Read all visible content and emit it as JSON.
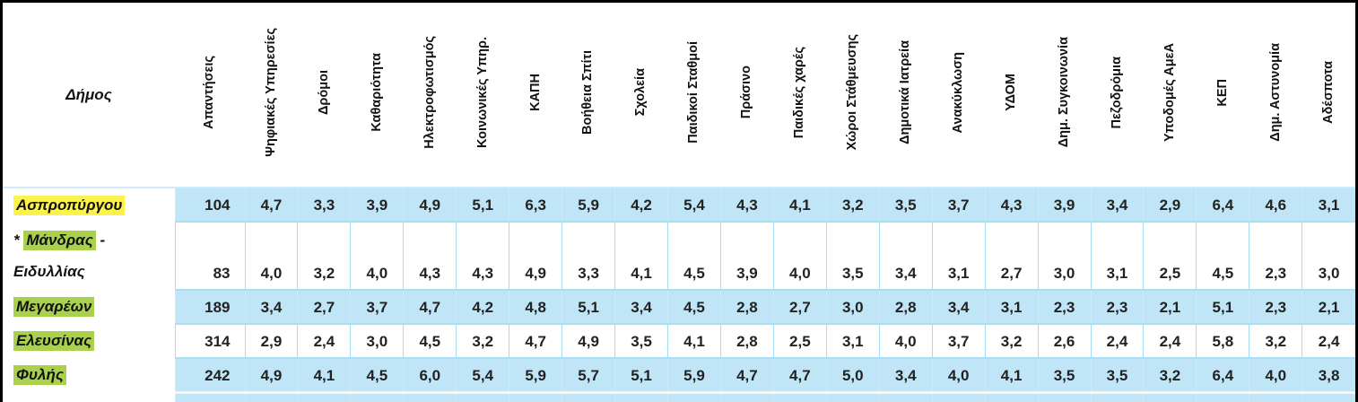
{
  "table": {
    "corner_header": "Δήμος",
    "columns": [
      "Απαντήσεις",
      "Ψηφιακές Υπηρεσίες",
      "Δρόμοι",
      "Καθαριότητα",
      "Ηλεκτροφωτισμός",
      "Κοινωνικές Υπηρ.",
      "ΚΑΠΗ",
      "Βοήθεια Σπίτι",
      "Σχολεία",
      "Παιδικοί Σταθμοί",
      "Πράσινο",
      "Παιδικές χαρές",
      "Χώροι Στάθμευσης",
      "Δημοτικά Ιατρεία",
      "Ανακύκλωση",
      "ΥΔΟΜ",
      "Δημ. Συγκοινωνία",
      "Πεζοδρόμια",
      "Υποδομές ΑμεΑ",
      "ΚΕΠ",
      "Δημ. Αστυνομία",
      "Αδέσποτα"
    ],
    "rows": [
      {
        "prefix": "",
        "name": "Ασπροπύργου",
        "suffix": "",
        "name_line2": "",
        "highlight": "yellow",
        "shaded": true,
        "tall": false,
        "values": [
          "104",
          "4,7",
          "3,3",
          "3,9",
          "4,9",
          "5,1",
          "6,3",
          "5,9",
          "4,2",
          "5,4",
          "4,3",
          "4,1",
          "3,2",
          "3,5",
          "3,7",
          "4,3",
          "3,9",
          "3,4",
          "2,9",
          "6,4",
          "4,6",
          "3,1"
        ]
      },
      {
        "prefix": "* ",
        "name": "Μάνδρας",
        "suffix": " -",
        "name_line2": "Ειδυλλίας",
        "highlight": "green",
        "shaded": false,
        "tall": true,
        "values": [
          "83",
          "4,0",
          "3,2",
          "4,0",
          "4,3",
          "4,3",
          "4,9",
          "3,3",
          "4,1",
          "4,5",
          "3,9",
          "4,0",
          "3,5",
          "3,4",
          "3,1",
          "2,7",
          "3,0",
          "3,1",
          "2,5",
          "4,5",
          "2,3",
          "3,0"
        ]
      },
      {
        "prefix": "",
        "name": "Μεγαρέων",
        "suffix": "",
        "name_line2": "",
        "highlight": "green",
        "shaded": true,
        "tall": false,
        "values": [
          "189",
          "3,4",
          "2,7",
          "3,7",
          "4,7",
          "4,2",
          "4,8",
          "5,1",
          "3,4",
          "4,5",
          "2,8",
          "2,7",
          "3,0",
          "2,8",
          "3,4",
          "3,1",
          "2,3",
          "2,3",
          "2,1",
          "5,1",
          "2,3",
          "2,1"
        ]
      },
      {
        "prefix": "",
        "name": "Ελευσίνας",
        "suffix": "",
        "name_line2": "",
        "highlight": "green",
        "shaded": false,
        "tall": false,
        "values": [
          "314",
          "2,9",
          "2,4",
          "3,0",
          "4,5",
          "3,2",
          "4,7",
          "4,9",
          "3,5",
          "4,1",
          "2,8",
          "2,5",
          "3,1",
          "4,0",
          "3,7",
          "3,2",
          "2,6",
          "2,4",
          "2,4",
          "5,8",
          "3,2",
          "2,4"
        ]
      },
      {
        "prefix": "",
        "name": "Φυλής",
        "suffix": "",
        "name_line2": "",
        "highlight": "green",
        "shaded": true,
        "tall": false,
        "values": [
          "242",
          "4,9",
          "4,1",
          "4,5",
          "6,0",
          "5,4",
          "5,9",
          "5,7",
          "5,1",
          "5,9",
          "4,7",
          "4,7",
          "5,0",
          "3,4",
          "4,0",
          "4,1",
          "3,5",
          "3,5",
          "3,2",
          "6,4",
          "4,0",
          "3,8"
        ]
      }
    ],
    "partial_bottom_row": {
      "shaded": true
    },
    "colors": {
      "cell_blue": "#bfe5f6",
      "grid_line": "#a5dcf4",
      "highlight_yellow": "#fbf24b",
      "highlight_green": "#a9d14e",
      "outer_border": "#000000"
    }
  }
}
